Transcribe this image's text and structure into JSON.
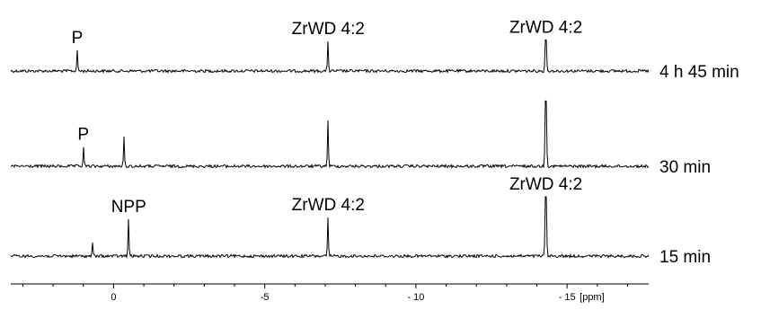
{
  "chart_data": {
    "type": "line",
    "xlabel": "[ppm]",
    "xlim": [
      3.4,
      -17.7
    ],
    "x_axis_direction": "reversed",
    "x_ticks": [
      0,
      -5,
      -10,
      -15
    ],
    "x_tick_labels": [
      "0",
      "-5",
      "- 10",
      "- 15"
    ],
    "minor_ticks": true,
    "grid": false,
    "series": [
      {
        "name": "4 h 45 min",
        "peaks": [
          {
            "x": 1.2,
            "height": 0.7
          },
          {
            "x": -7.1,
            "height": 1.0
          },
          {
            "x": -14.3,
            "height": 1.05
          }
        ]
      },
      {
        "name": "30 min",
        "peaks": [
          {
            "x": 1.0,
            "height": 0.65
          },
          {
            "x": -0.35,
            "height": 1.0
          },
          {
            "x": -7.1,
            "height": 1.55
          },
          {
            "x": -14.3,
            "height": 2.2
          }
        ]
      },
      {
        "name": "15 min",
        "peaks": [
          {
            "x": 0.7,
            "height": 0.45
          },
          {
            "x": -0.5,
            "height": 1.25
          },
          {
            "x": -7.1,
            "height": 1.3
          },
          {
            "x": -14.3,
            "height": 2.0
          }
        ]
      }
    ],
    "annotations": [
      {
        "series": "4 h 45 min",
        "x": 1.2,
        "text": "P"
      },
      {
        "series": "4 h 45 min",
        "x": -7.1,
        "text": "ZrWD 4:2"
      },
      {
        "series": "4 h 45 min",
        "x": -14.3,
        "text": "ZrWD 4:2"
      },
      {
        "series": "30 min",
        "x": 1.0,
        "text": "P"
      },
      {
        "series": "15 min",
        "x": -0.5,
        "text": "NPP"
      },
      {
        "series": "15 min",
        "x": -7.1,
        "text": "ZrWD 4:2"
      },
      {
        "series": "15 min",
        "x": -14.3,
        "text": "ZrWD 4:2"
      }
    ]
  }
}
